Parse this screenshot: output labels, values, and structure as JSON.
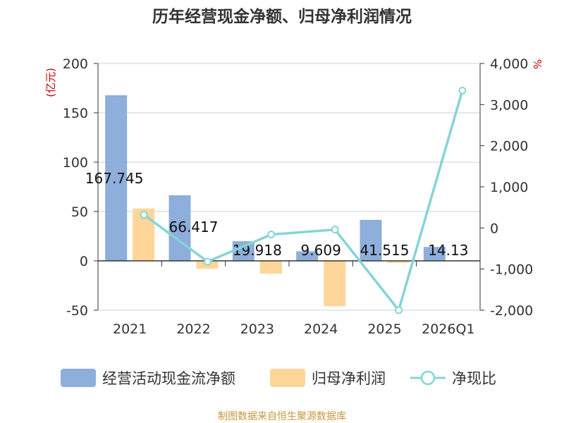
{
  "chart_data": {
    "type": "bar",
    "title": "历年经营现金净额、归母净利润情况",
    "left_unit": "(亿元)",
    "right_unit": "%",
    "categories": [
      "2021",
      "2022",
      "2023",
      "2024",
      "2025",
      "2026Q1"
    ],
    "left_ylim": [
      -50,
      200
    ],
    "left_ticks": [
      200,
      150,
      100,
      50,
      0,
      -50
    ],
    "right_ylim": [
      -2000,
      4000
    ],
    "right_ticks": [
      "4,000",
      "3,000",
      "2,000",
      "1,000",
      "0",
      "-1,000",
      "-2,000"
    ],
    "right_tick_values": [
      4000,
      3000,
      2000,
      1000,
      0,
      -1000,
      -2000
    ],
    "series": [
      {
        "name": "经营活动现金流净额",
        "kind": "bar",
        "color": "#8eaedb",
        "values": [
          167.745,
          66.417,
          19.918,
          9.609,
          41.515,
          14.13
        ],
        "labels": [
          "167.745",
          "66.417",
          "19.918",
          "9.609",
          "41.515",
          "14.13"
        ]
      },
      {
        "name": "归母净利润",
        "kind": "bar",
        "color": "#ffd699",
        "values": [
          53.0,
          -8.0,
          -13.0,
          -46.0,
          -2.0,
          0.5
        ]
      },
      {
        "name": "净现比",
        "kind": "line",
        "color": "#86d4d6",
        "axis": "right",
        "values": [
          320,
          -820,
          -160,
          -40,
          -2000,
          3340
        ]
      }
    ],
    "grid": true,
    "legend_position": "bottom"
  },
  "source": "制图数据来自恒生聚源数据库"
}
